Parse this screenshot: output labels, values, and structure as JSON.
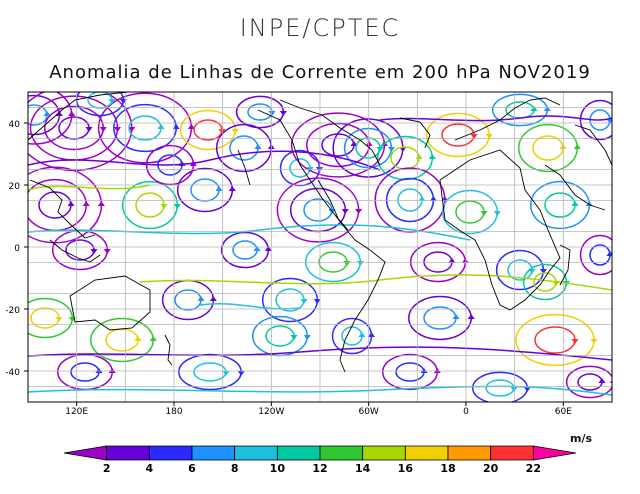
{
  "header": {
    "org": "INPE/CPTEC",
    "title": "Anomalia de Linhas de Corrente em 200 hPa NOV2019"
  },
  "map": {
    "lat_ticks": [
      "40",
      "20",
      "0",
      "-20",
      "-40"
    ],
    "lon_ticks": [
      "120E",
      "180",
      "120W",
      "60W",
      "0",
      "60E"
    ],
    "lat_range": [
      -50,
      50
    ],
    "lon_range": [
      90,
      450
    ]
  },
  "legend": {
    "units": "m/s",
    "labels": [
      "2",
      "4",
      "6",
      "8",
      "10",
      "12",
      "14",
      "16",
      "18",
      "20",
      "22"
    ],
    "colors": [
      "#9e00c8",
      "#6a00d8",
      "#2b2bff",
      "#1e90ff",
      "#1ec0e0",
      "#00c8a0",
      "#30c830",
      "#a8d800",
      "#f0d000",
      "#ff9a00",
      "#ff3030",
      "#ff00a0"
    ]
  }
}
